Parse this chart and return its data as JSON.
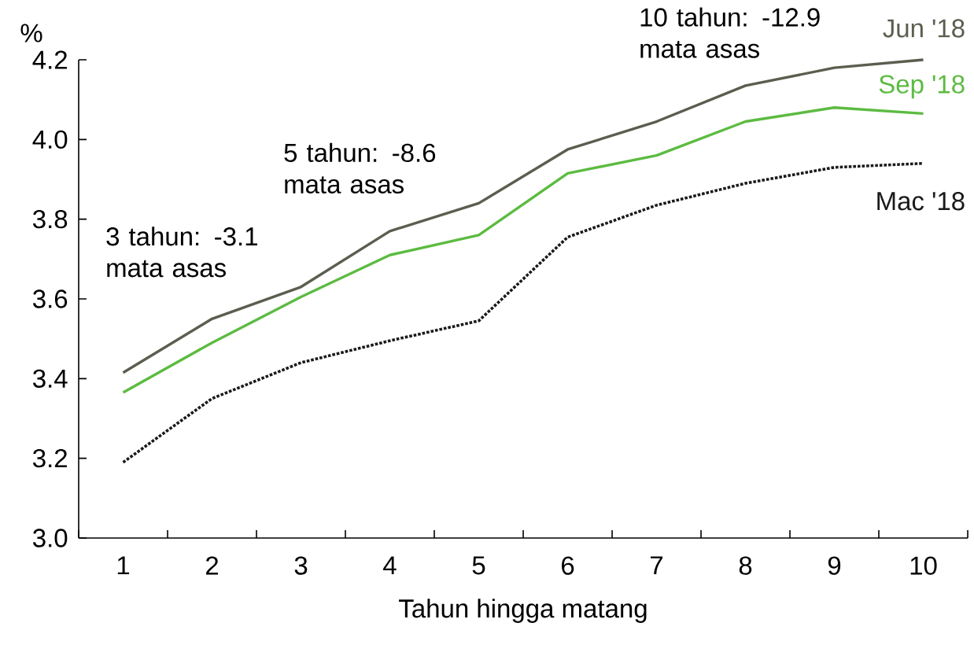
{
  "chart_data": {
    "type": "line",
    "xlabel": "Tahun hingga matang",
    "ylabel": "%",
    "categories": [
      "1",
      "2",
      "3",
      "4",
      "5",
      "6",
      "7",
      "8",
      "9",
      "10"
    ],
    "series": [
      {
        "name": "Jun '18",
        "color": "#5b5e4f",
        "line_style": "solid",
        "values": [
          3.415,
          3.55,
          3.63,
          3.77,
          3.84,
          3.975,
          4.045,
          4.135,
          4.18,
          4.2
        ]
      },
      {
        "name": "Sep '18",
        "color": "#5cbb41",
        "line_style": "solid",
        "values": [
          3.365,
          3.49,
          3.605,
          3.71,
          3.76,
          3.915,
          3.96,
          4.045,
          4.08,
          4.065
        ]
      },
      {
        "name": "Mac '18",
        "color": "#1a1a1a",
        "line_style": "dotted",
        "values": [
          3.19,
          3.35,
          3.44,
          3.495,
          3.545,
          3.755,
          3.835,
          3.89,
          3.93,
          3.94
        ]
      }
    ],
    "ylim": [
      3.0,
      4.2
    ],
    "yticks": [
      {
        "value": 3.0,
        "label": "3.0"
      },
      {
        "value": 3.2,
        "label": "3.2"
      },
      {
        "value": 3.4,
        "label": "3.4"
      },
      {
        "value": 3.6,
        "label": "3.6"
      },
      {
        "value": 3.8,
        "label": "3.8"
      },
      {
        "value": 4.0,
        "label": "4.0"
      },
      {
        "value": 4.2,
        "label": "4.2"
      }
    ],
    "legend": false,
    "marker": "none",
    "annotations": [
      {
        "text": "3 tahun: -3.1 mata asas",
        "x": "3",
        "y": 3.63
      },
      {
        "text": "5 tahun: -8.6 mata asas",
        "x": "5",
        "y": 3.84
      },
      {
        "text": "10 tahun: -12.9 mata asas",
        "x": "9",
        "y": 4.18
      }
    ]
  }
}
